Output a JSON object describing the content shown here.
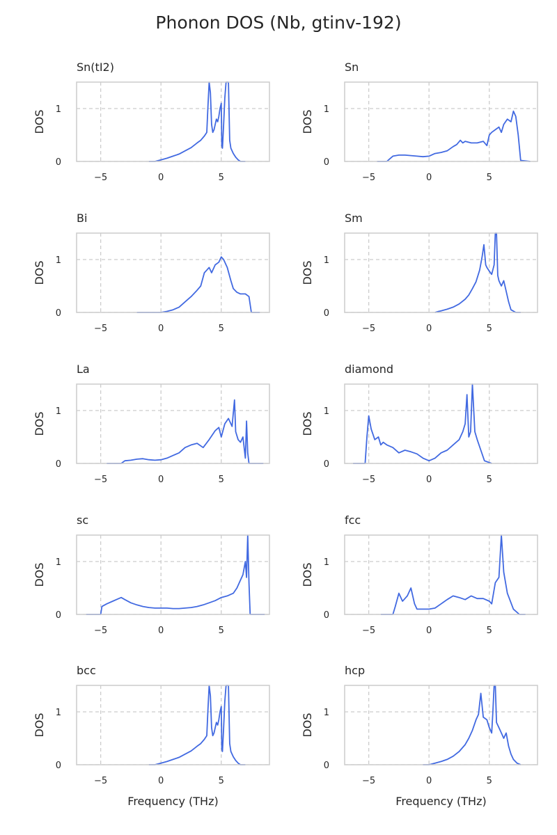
{
  "figure": {
    "title": "Phonon DOS (Nb, gtinv-192)"
  },
  "chart_data": [
    {
      "type": "line",
      "title": "Sn(tI2)",
      "ylabel": "DOS",
      "xlabel": "",
      "xlim": [
        -7,
        9
      ],
      "ylim": [
        0,
        1.5
      ],
      "xticks": [
        -5,
        0,
        5
      ],
      "yticks": [
        0,
        1
      ],
      "grid": true,
      "color": "#4169e1",
      "x": [
        -1,
        -0.5,
        0,
        0.5,
        1,
        1.5,
        2,
        2.5,
        3,
        3.3,
        3.6,
        3.8,
        3.9,
        4,
        4.1,
        4.2,
        4.3,
        4.4,
        4.5,
        4.6,
        4.7,
        4.8,
        4.9,
        5,
        5.05,
        5.1,
        5.2,
        5.3,
        5.4,
        5.5,
        5.6,
        5.7,
        5.8,
        5.9,
        6,
        6.2,
        6.4,
        6.6,
        7
      ],
      "y": [
        0,
        0,
        0.03,
        0.06,
        0.1,
        0.14,
        0.2,
        0.26,
        0.35,
        0.4,
        0.48,
        0.55,
        1.05,
        1.5,
        1.3,
        0.7,
        0.55,
        0.6,
        0.7,
        0.8,
        0.75,
        0.85,
        1.0,
        1.1,
        0.3,
        0.25,
        0.7,
        1.2,
        1.5,
        1.5,
        1.5,
        0.4,
        0.25,
        0.2,
        0.15,
        0.08,
        0.03,
        0,
        0
      ]
    },
    {
      "type": "line",
      "title": "Sn",
      "ylabel": "DOS",
      "xlabel": "",
      "xlim": [
        -7,
        9
      ],
      "ylim": [
        0,
        1.5
      ],
      "xticks": [
        -5,
        0,
        5
      ],
      "yticks": [
        0,
        1
      ],
      "grid": true,
      "color": "#4169e1",
      "x": [
        -4.3,
        -3.5,
        -3.2,
        -3,
        -2.5,
        -2,
        -1.5,
        -1,
        -0.5,
        0,
        0.5,
        1,
        1.5,
        2,
        2.3,
        2.6,
        2.8,
        3,
        3.5,
        4,
        4.5,
        4.8,
        5,
        5.2,
        5.5,
        5.8,
        6,
        6.2,
        6.5,
        6.8,
        7,
        7.2,
        7.4,
        7.6,
        8.4
      ],
      "y": [
        0,
        0,
        0.06,
        0.1,
        0.12,
        0.12,
        0.11,
        0.1,
        0.09,
        0.1,
        0.15,
        0.17,
        0.2,
        0.28,
        0.32,
        0.4,
        0.35,
        0.38,
        0.35,
        0.35,
        0.38,
        0.3,
        0.5,
        0.55,
        0.6,
        0.65,
        0.55,
        0.7,
        0.8,
        0.75,
        0.95,
        0.85,
        0.5,
        0.02,
        0
      ]
    },
    {
      "type": "line",
      "title": "Bi",
      "ylabel": "DOS",
      "xlabel": "",
      "xlim": [
        -7,
        9
      ],
      "ylim": [
        0,
        1.5
      ],
      "xticks": [
        -5,
        0,
        5
      ],
      "yticks": [
        0,
        1
      ],
      "grid": true,
      "color": "#4169e1",
      "x": [
        -2,
        -1,
        0,
        0.5,
        1,
        1.5,
        2,
        2.5,
        3,
        3.3,
        3.6,
        3.8,
        4,
        4.2,
        4.5,
        4.8,
        5,
        5.2,
        5.5,
        5.8,
        6,
        6.3,
        6.6,
        7,
        7.3,
        7.5,
        8.2
      ],
      "y": [
        0,
        0,
        0,
        0.02,
        0.05,
        0.1,
        0.2,
        0.3,
        0.42,
        0.5,
        0.75,
        0.8,
        0.85,
        0.75,
        0.9,
        0.95,
        1.05,
        1.0,
        0.85,
        0.6,
        0.45,
        0.38,
        0.35,
        0.35,
        0.3,
        0,
        0
      ]
    },
    {
      "type": "line",
      "title": "Sm",
      "ylabel": "DOS",
      "xlabel": "",
      "xlim": [
        -7,
        9
      ],
      "ylim": [
        0,
        1.5
      ],
      "xticks": [
        -5,
        0,
        5
      ],
      "yticks": [
        0,
        1
      ],
      "grid": true,
      "color": "#4169e1",
      "x": [
        0.5,
        0.8,
        1,
        1.5,
        2,
        2.5,
        3,
        3.3,
        3.6,
        3.9,
        4.2,
        4.4,
        4.55,
        4.7,
        4.8,
        5,
        5.2,
        5.4,
        5.5,
        5.6,
        5.7,
        5.8,
        5.9,
        6.0,
        6.2,
        6.4,
        6.6,
        6.8,
        7.2,
        7.6
      ],
      "y": [
        0,
        0.02,
        0.03,
        0.06,
        0.1,
        0.16,
        0.25,
        0.33,
        0.45,
        0.58,
        0.8,
        1.05,
        1.28,
        0.9,
        0.85,
        0.78,
        0.72,
        0.9,
        1.5,
        1.5,
        0.7,
        0.6,
        0.55,
        0.5,
        0.6,
        0.4,
        0.2,
        0.05,
        0,
        0
      ]
    },
    {
      "type": "line",
      "title": "La",
      "ylabel": "DOS",
      "xlabel": "",
      "xlim": [
        -7,
        9
      ],
      "ylim": [
        0,
        1.5
      ],
      "xticks": [
        -5,
        0,
        5
      ],
      "yticks": [
        0,
        1
      ],
      "grid": true,
      "color": "#4169e1",
      "x": [
        -4.5,
        -3.3,
        -3,
        -2.5,
        -2,
        -1.5,
        -1,
        -0.5,
        0,
        0.5,
        1,
        1.5,
        2,
        2.5,
        3,
        3.5,
        4,
        4.5,
        4.8,
        5,
        5.3,
        5.6,
        5.9,
        6.1,
        6.2,
        6.4,
        6.6,
        6.8,
        7,
        7.1,
        7.2,
        7.3,
        7.5,
        8.5
      ],
      "y": [
        0,
        0,
        0.05,
        0.06,
        0.08,
        0.09,
        0.07,
        0.06,
        0.07,
        0.1,
        0.15,
        0.2,
        0.3,
        0.35,
        0.38,
        0.3,
        0.45,
        0.62,
        0.68,
        0.5,
        0.75,
        0.85,
        0.7,
        1.2,
        0.6,
        0.45,
        0.4,
        0.5,
        0.1,
        0.8,
        0.2,
        0,
        0,
        0
      ]
    },
    {
      "type": "line",
      "title": "diamond",
      "ylabel": "DOS",
      "xlabel": "",
      "xlim": [
        -7,
        9
      ],
      "ylim": [
        0,
        1.5
      ],
      "xticks": [
        -5,
        0,
        5
      ],
      "yticks": [
        0,
        1
      ],
      "grid": true,
      "color": "#4169e1",
      "x": [
        -6.3,
        -5.3,
        -5.15,
        -5,
        -4.8,
        -4.5,
        -4.2,
        -4,
        -3.8,
        -3.5,
        -3,
        -2.5,
        -2,
        -1.5,
        -1,
        -0.5,
        0,
        0.5,
        1,
        1.5,
        2,
        2.5,
        2.8,
        3,
        3.15,
        3.3,
        3.45,
        3.6,
        3.8,
        4,
        4.3,
        4.6,
        5.2
      ],
      "y": [
        0,
        0,
        0.5,
        0.9,
        0.65,
        0.45,
        0.5,
        0.35,
        0.4,
        0.35,
        0.3,
        0.2,
        0.25,
        0.22,
        0.18,
        0.1,
        0.05,
        0.1,
        0.2,
        0.25,
        0.35,
        0.45,
        0.6,
        0.75,
        1.3,
        0.5,
        0.6,
        1.5,
        0.6,
        0.45,
        0.25,
        0.05,
        0
      ]
    },
    {
      "type": "line",
      "title": "sc",
      "ylabel": "DOS",
      "xlabel": "",
      "xlim": [
        -7,
        9
      ],
      "ylim": [
        0,
        1.5
      ],
      "xticks": [
        -5,
        0,
        5
      ],
      "yticks": [
        0,
        1
      ],
      "grid": true,
      "color": "#4169e1",
      "x": [
        -6.2,
        -5,
        -4.9,
        -4.5,
        -4,
        -3.5,
        -3.3,
        -3,
        -2.5,
        -2,
        -1.5,
        -1,
        -0.5,
        0,
        0.5,
        1,
        1.5,
        2,
        2.5,
        3,
        3.5,
        4,
        4.5,
        5,
        5.5,
        6,
        6.3,
        6.6,
        6.8,
        7,
        7.1,
        7.2,
        7.3,
        7.4,
        8.6
      ],
      "y": [
        0,
        0,
        0.15,
        0.2,
        0.25,
        0.3,
        0.32,
        0.28,
        0.22,
        0.18,
        0.15,
        0.13,
        0.12,
        0.12,
        0.12,
        0.11,
        0.11,
        0.12,
        0.13,
        0.15,
        0.18,
        0.22,
        0.26,
        0.32,
        0.35,
        0.4,
        0.5,
        0.65,
        0.75,
        1.0,
        0.7,
        1.5,
        0.6,
        0,
        0
      ]
    },
    {
      "type": "line",
      "title": "fcc",
      "ylabel": "DOS",
      "xlabel": "",
      "xlim": [
        -7,
        9
      ],
      "ylim": [
        0,
        1.5
      ],
      "xticks": [
        -5,
        0,
        5
      ],
      "yticks": [
        0,
        1
      ],
      "grid": true,
      "color": "#4169e1",
      "x": [
        -4,
        -3,
        -2.8,
        -2.5,
        -2.2,
        -2,
        -1.8,
        -1.5,
        -1.2,
        -1,
        -0.5,
        0,
        0.5,
        1,
        1.5,
        2,
        2.5,
        3,
        3.5,
        4,
        4.5,
        5,
        5.2,
        5.5,
        5.8,
        6,
        6.2,
        6.5,
        7,
        7.5,
        8
      ],
      "y": [
        0,
        0,
        0.15,
        0.4,
        0.25,
        0.3,
        0.35,
        0.5,
        0.2,
        0.1,
        0.1,
        0.1,
        0.12,
        0.2,
        0.28,
        0.35,
        0.32,
        0.28,
        0.35,
        0.3,
        0.3,
        0.25,
        0.2,
        0.6,
        0.7,
        1.5,
        0.8,
        0.4,
        0.1,
        0,
        0
      ]
    },
    {
      "type": "line",
      "title": "bcc",
      "ylabel": "DOS",
      "xlabel": "Frequency (THz)",
      "xlim": [
        -7,
        9
      ],
      "ylim": [
        0,
        1.5
      ],
      "xticks": [
        -5,
        0,
        5
      ],
      "yticks": [
        0,
        1
      ],
      "grid": true,
      "color": "#4169e1",
      "x": [
        -1,
        -0.5,
        0,
        0.5,
        1,
        1.5,
        2,
        2.5,
        3,
        3.3,
        3.6,
        3.8,
        3.9,
        4,
        4.1,
        4.2,
        4.3,
        4.4,
        4.5,
        4.6,
        4.7,
        4.8,
        4.9,
        5,
        5.05,
        5.1,
        5.2,
        5.3,
        5.4,
        5.5,
        5.6,
        5.7,
        5.8,
        5.9,
        6,
        6.2,
        6.4,
        6.6,
        7
      ],
      "y": [
        0,
        0,
        0.03,
        0.06,
        0.1,
        0.14,
        0.2,
        0.26,
        0.35,
        0.4,
        0.48,
        0.55,
        1.05,
        1.5,
        1.3,
        0.7,
        0.55,
        0.6,
        0.7,
        0.8,
        0.75,
        0.85,
        1.0,
        1.1,
        0.3,
        0.25,
        0.7,
        1.2,
        1.5,
        1.5,
        1.5,
        0.4,
        0.25,
        0.2,
        0.15,
        0.08,
        0.03,
        0,
        0
      ]
    },
    {
      "type": "line",
      "title": "hcp",
      "ylabel": "DOS",
      "xlabel": "Frequency (THz)",
      "xlim": [
        -7,
        9
      ],
      "ylim": [
        0,
        1.5
      ],
      "xticks": [
        -5,
        0,
        5
      ],
      "yticks": [
        0,
        1
      ],
      "grid": true,
      "color": "#4169e1",
      "x": [
        -0.5,
        0,
        0.5,
        1,
        1.5,
        2,
        2.5,
        3,
        3.3,
        3.6,
        3.9,
        4.1,
        4.3,
        4.5,
        4.8,
        5,
        5.2,
        5.3,
        5.4,
        5.5,
        5.6,
        5.8,
        6,
        6.2,
        6.4,
        6.6,
        6.8,
        7,
        7.3,
        7.6
      ],
      "y": [
        0,
        0,
        0.03,
        0.06,
        0.1,
        0.16,
        0.25,
        0.38,
        0.5,
        0.65,
        0.85,
        0.95,
        1.35,
        0.9,
        0.85,
        0.7,
        0.6,
        1.0,
        1.5,
        1.5,
        0.8,
        0.7,
        0.6,
        0.5,
        0.6,
        0.35,
        0.2,
        0.1,
        0.03,
        0
      ]
    }
  ]
}
